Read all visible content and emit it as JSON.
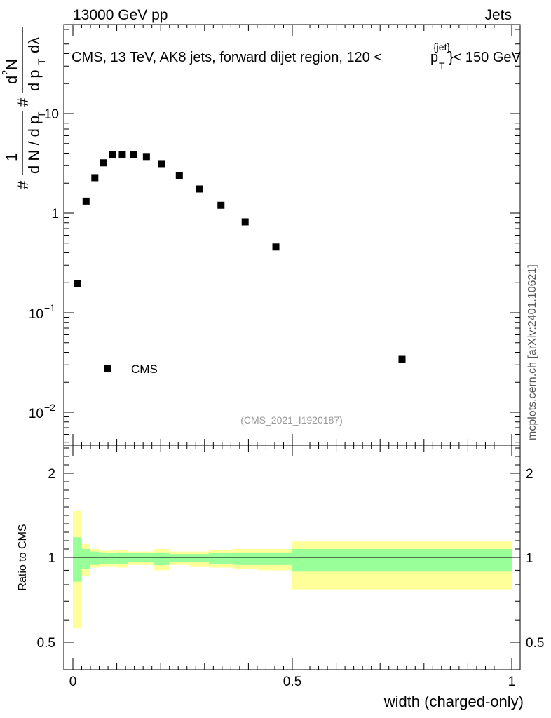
{
  "header": {
    "left": "13000 GeV pp",
    "right": "Jets"
  },
  "title": "CMS, 13 TeV, AK8 jets, forward dijet region, 120 <",
  "title_pt": "p",
  "title_pt_sub": "T",
  "title_pt_sup": "{jet}",
  "title_tail": "}< 150 GeV",
  "side_label": "mcplots.cern.ch [arXiv:2401.10621]",
  "analysis_id": "(CMS_2021_I1920187)",
  "legend_label": "CMS",
  "ylabel_main": {
    "hash1": "#",
    "one": "1",
    "denom": "d N / d p",
    "denom_sub": "T",
    "hash2": "#",
    "num": "d",
    "num_sup": "2",
    "num_N": "N",
    "den2": "d p",
    "den2_sub": "T",
    "den2_tail": "dλ"
  },
  "ylabel_ratio": "Ratio to CMS",
  "xlabel": "width (charged-only)",
  "main_ticks": {
    "t10": "10",
    "t1": "1",
    "t01_base": "10",
    "t01_exp": "−1",
    "t001_base": "10",
    "t001_exp": "−2"
  },
  "ratio_ticks": [
    "2",
    "1",
    "0.5"
  ],
  "x_ticks": [
    "0",
    "0.5",
    "1"
  ],
  "colors": {
    "band_outer": "#ffff99",
    "band_inner": "#99ff99",
    "marker": "#000000"
  },
  "chart_data": {
    "type": "scatter",
    "title": "CMS, 13 TeV, AK8 jets, forward dijet region, 120 <p_T^{jet}< 150 GeV",
    "xlabel": "width (charged-only)",
    "ylabel": "1/dN/dpT  d2N/dpT dlambda",
    "yscale": "log",
    "xlim": [
      -0.02,
      1.02
    ],
    "ylim": [
      0.0055,
      70
    ],
    "series": [
      {
        "name": "CMS",
        "points": [
          {
            "x": 0.01,
            "y": 0.197
          },
          {
            "x": 0.03,
            "y": 1.32
          },
          {
            "x": 0.05,
            "y": 2.27
          },
          {
            "x": 0.07,
            "y": 3.2
          },
          {
            "x": 0.09,
            "y": 3.9
          },
          {
            "x": 0.1125,
            "y": 3.86
          },
          {
            "x": 0.1375,
            "y": 3.84
          },
          {
            "x": 0.1675,
            "y": 3.7
          },
          {
            "x": 0.2025,
            "y": 3.14
          },
          {
            "x": 0.2425,
            "y": 2.38
          },
          {
            "x": 0.2875,
            "y": 1.75
          },
          {
            "x": 0.3375,
            "y": 1.2
          },
          {
            "x": 0.3925,
            "y": 0.817
          },
          {
            "x": 0.4625,
            "y": 0.457
          },
          {
            "x": 0.75,
            "y": 0.034
          }
        ]
      }
    ],
    "ratio": {
      "ylabel": "Ratio to CMS",
      "ylim": [
        0.35,
        2.4
      ],
      "reference": 1.0,
      "bins": [
        {
          "lo": 0.0,
          "hi": 0.02,
          "inner": [
            0.82,
            1.24
          ],
          "outer": [
            0.56,
            1.55
          ]
        },
        {
          "lo": 0.02,
          "hi": 0.04,
          "inner": [
            0.91,
            1.1
          ],
          "outer": [
            0.86,
            1.16
          ]
        },
        {
          "lo": 0.04,
          "hi": 0.06,
          "inner": [
            0.94,
            1.07
          ],
          "outer": [
            0.92,
            1.1
          ]
        },
        {
          "lo": 0.06,
          "hi": 0.08,
          "inner": [
            0.95,
            1.06
          ],
          "outer": [
            0.93,
            1.08
          ]
        },
        {
          "lo": 0.08,
          "hi": 0.1,
          "inner": [
            0.95,
            1.05
          ],
          "outer": [
            0.93,
            1.08
          ]
        },
        {
          "lo": 0.1,
          "hi": 0.125,
          "inner": [
            0.95,
            1.06
          ],
          "outer": [
            0.92,
            1.09
          ]
        },
        {
          "lo": 0.125,
          "hi": 0.15,
          "inner": [
            0.96,
            1.05
          ],
          "outer": [
            0.94,
            1.07
          ]
        },
        {
          "lo": 0.15,
          "hi": 0.185,
          "inner": [
            0.96,
            1.05
          ],
          "outer": [
            0.94,
            1.07
          ]
        },
        {
          "lo": 0.185,
          "hi": 0.22,
          "inner": [
            0.94,
            1.06
          ],
          "outer": [
            0.9,
            1.1
          ]
        },
        {
          "lo": 0.22,
          "hi": 0.265,
          "inner": [
            0.96,
            1.04
          ],
          "outer": [
            0.94,
            1.07
          ]
        },
        {
          "lo": 0.265,
          "hi": 0.31,
          "inner": [
            0.96,
            1.04
          ],
          "outer": [
            0.93,
            1.07
          ]
        },
        {
          "lo": 0.31,
          "hi": 0.365,
          "inner": [
            0.95,
            1.05
          ],
          "outer": [
            0.92,
            1.09
          ]
        },
        {
          "lo": 0.365,
          "hi": 0.42,
          "inner": [
            0.94,
            1.06
          ],
          "outer": [
            0.91,
            1.1
          ]
        },
        {
          "lo": 0.42,
          "hi": 0.5,
          "inner": [
            0.94,
            1.06
          ],
          "outer": [
            0.9,
            1.1
          ]
        },
        {
          "lo": 0.5,
          "hi": 1.0,
          "inner": [
            0.89,
            1.1
          ],
          "outer": [
            0.77,
            1.19
          ]
        }
      ]
    }
  }
}
